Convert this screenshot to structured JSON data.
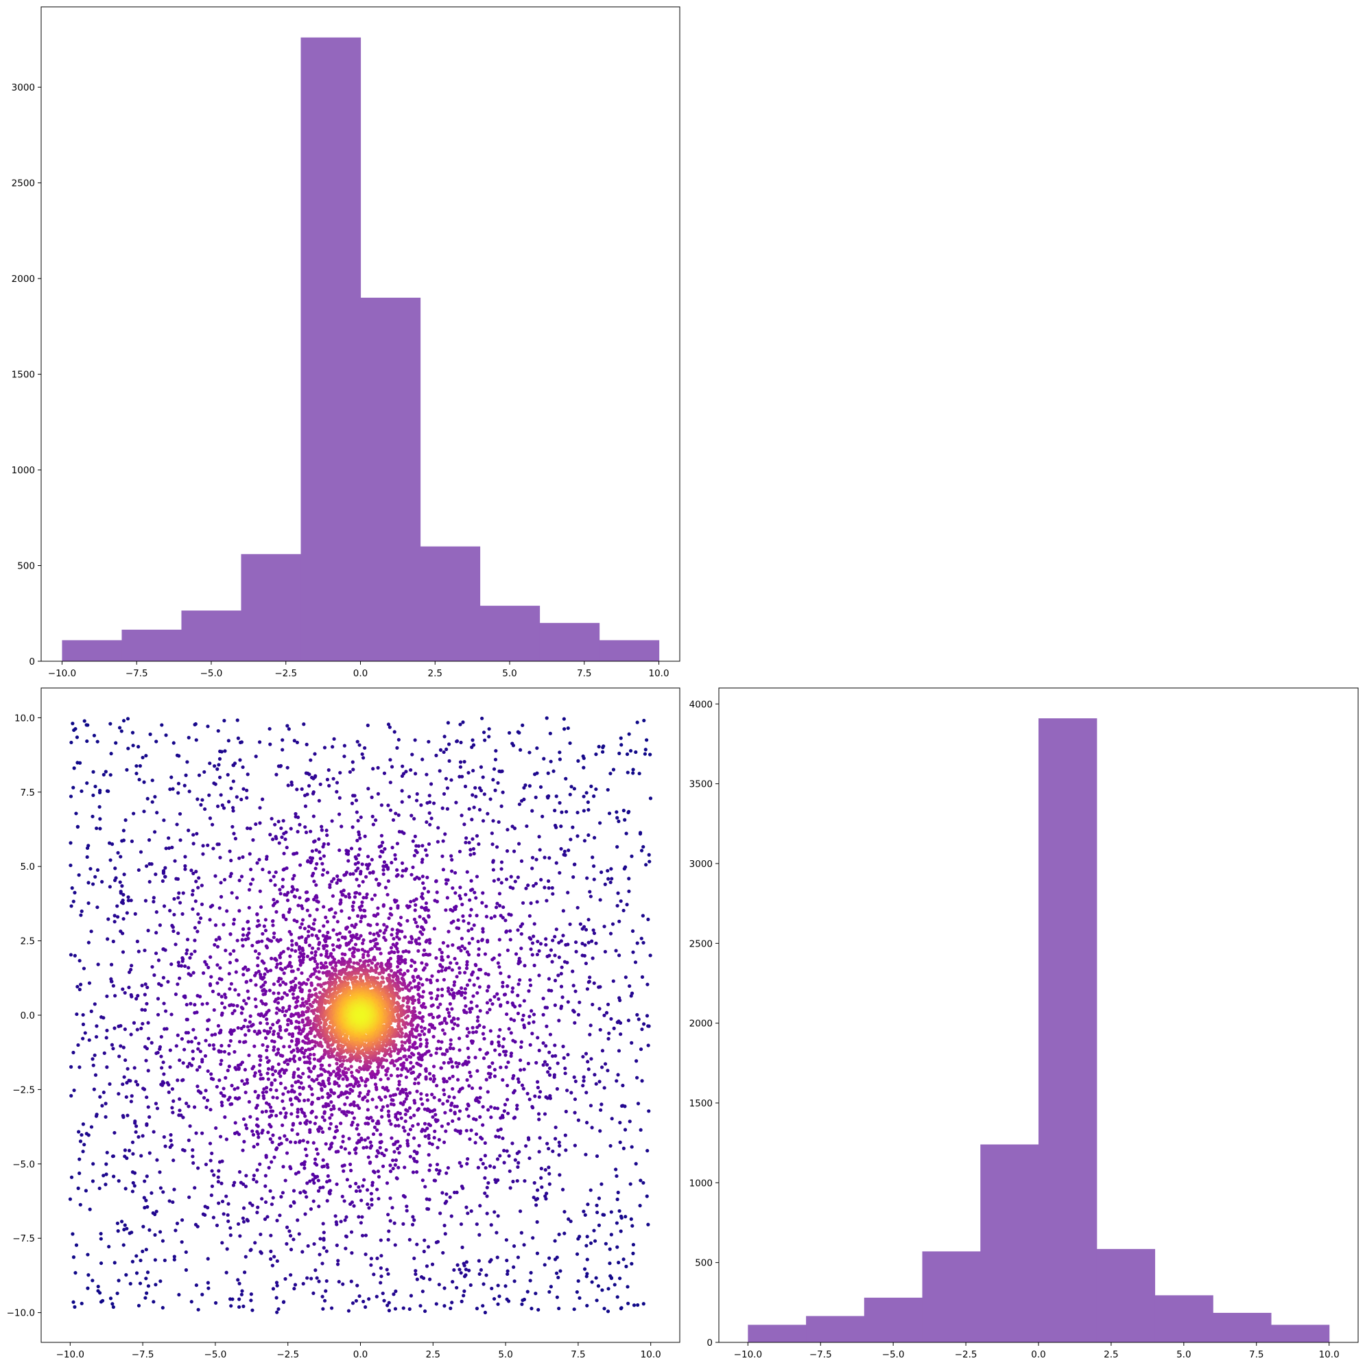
{
  "colors": {
    "bar": "#9467bd",
    "scatter_colormap": "plasma",
    "frame": "#000000"
  },
  "chart_data": [
    {
      "id": "top-histogram",
      "type": "bar",
      "bin_edges": [
        -10,
        -8,
        -6,
        -4,
        -2,
        0,
        2,
        4,
        6,
        8,
        10
      ],
      "values": [
        110,
        165,
        265,
        560,
        3260,
        1900,
        600,
        290,
        200,
        110
      ],
      "xlim": [
        -10.7,
        10.7
      ],
      "ylim": [
        0,
        3420
      ],
      "xticks": [
        -10.0,
        -7.5,
        -5.0,
        -2.5,
        0.0,
        2.5,
        5.0,
        7.5,
        10.0
      ],
      "xtick_labels": [
        "−10.0",
        "−7.5",
        "−5.0",
        "−2.5",
        "0.0",
        "2.5",
        "5.0",
        "7.5",
        "10.0"
      ],
      "yticks": [
        0,
        500,
        1000,
        1500,
        2000,
        2500,
        3000
      ],
      "ytick_labels": [
        "0",
        "500",
        "1000",
        "1500",
        "2000",
        "2500",
        "3000"
      ],
      "grid": false
    },
    {
      "id": "scatter-density",
      "type": "scatter",
      "color_by": "density",
      "colormap": "plasma",
      "n_points_approx": 7000,
      "x_range": [
        -10,
        10
      ],
      "y_range": [
        -10,
        10
      ],
      "concentration_center": [
        0.0,
        0.0
      ],
      "xlim": [
        -11.0,
        11.0
      ],
      "ylim": [
        -11.0,
        11.0
      ],
      "xticks": [
        -10.0,
        -7.5,
        -5.0,
        -2.5,
        0.0,
        2.5,
        5.0,
        7.5,
        10.0
      ],
      "xtick_labels": [
        "−10.0",
        "−7.5",
        "−5.0",
        "−2.5",
        "0.0",
        "2.5",
        "5.0",
        "7.5",
        "10.0"
      ],
      "yticks": [
        10.0,
        7.5,
        5.0,
        2.5,
        0.0,
        -2.5,
        -5.0,
        -7.5,
        -10.0
      ],
      "ytick_labels": [
        "10.0",
        "7.5",
        "5.0",
        "2.5",
        "0.0",
        "−2.5",
        "−5.0",
        "−7.5",
        "−10.0"
      ],
      "grid": false
    },
    {
      "id": "right-histogram",
      "type": "bar",
      "bin_edges": [
        -10,
        -8,
        -6,
        -4,
        -2,
        0,
        2,
        4,
        6,
        8,
        10
      ],
      "values": [
        110,
        165,
        280,
        570,
        1240,
        3910,
        585,
        295,
        185,
        110
      ],
      "xlim": [
        -11.0,
        11.0
      ],
      "ylim": [
        0,
        4100
      ],
      "xticks": [
        -10.0,
        -7.5,
        -5.0,
        -2.5,
        0.0,
        2.5,
        5.0,
        7.5,
        10.0
      ],
      "xtick_labels": [
        "−10.0",
        "−7.5",
        "−5.0",
        "−2.5",
        "0.0",
        "2.5",
        "5.0",
        "7.5",
        "10.0"
      ],
      "yticks": [
        0,
        500,
        1000,
        1500,
        2000,
        2500,
        3000,
        3500,
        4000
      ],
      "ytick_labels": [
        "0",
        "500",
        "1000",
        "1500",
        "2000",
        "2500",
        "3000",
        "3500",
        "4000"
      ],
      "grid": false
    }
  ]
}
